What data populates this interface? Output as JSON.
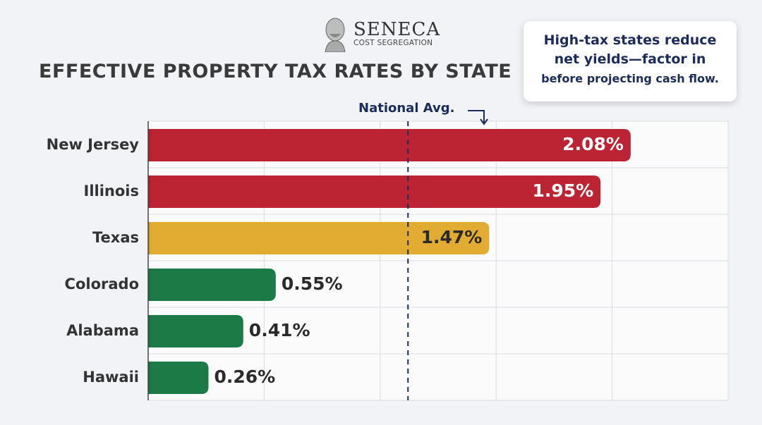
{
  "logo": {
    "name": "SENECA",
    "subtitle": "COST SEGREGATION"
  },
  "callout": {
    "line1": "High-tax states reduce",
    "line2": "net yields—factor in",
    "line3": "before projecting cash flow."
  },
  "chart_data": {
    "type": "bar",
    "orientation": "horizontal",
    "title": "EFFECTIVE PROPERTY TAX RATES BY STATE",
    "categories": [
      "New Jersey",
      "Illinois",
      "Texas",
      "Colorado",
      "Alabama",
      "Hawaii"
    ],
    "values": [
      2.08,
      1.95,
      1.47,
      0.55,
      0.41,
      0.26
    ],
    "data_labels": [
      "2.08%",
      "1.95%",
      "1.47%",
      "0.55%",
      "0.41%",
      "0.26%"
    ],
    "bar_colors": [
      "#bd2433",
      "#bd2433",
      "#e2ac33",
      "#1b7a45",
      "#1b7a45",
      "#1b7a45"
    ],
    "xlim": [
      0,
      2.5
    ],
    "grid": true,
    "reference_line": {
      "label": "National Avg.",
      "value": 1.12,
      "color": "#1a2b5c"
    }
  }
}
